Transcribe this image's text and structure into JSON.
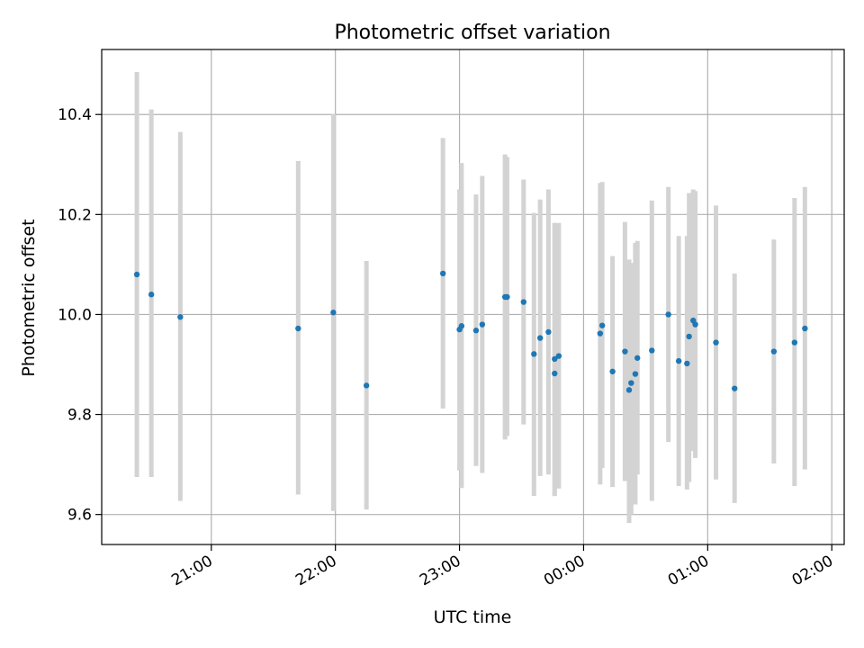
{
  "chart_data": {
    "type": "scatter",
    "title": "Photometric offset variation",
    "xlabel": "UTC time",
    "ylabel": "Photometric offset",
    "x_is_time": true,
    "xlim": [
      "20:07",
      "02:06"
    ],
    "ylim": [
      9.54,
      10.53
    ],
    "x_ticks": [
      "21:00",
      "22:00",
      "23:00",
      "00:00",
      "01:00",
      "02:00"
    ],
    "y_ticks": [
      "9.6",
      "9.8",
      "10.0",
      "10.2",
      "10.4"
    ],
    "grid": true,
    "legend": false,
    "colors": {
      "marker": "#1f77b4",
      "errorbar": "#d3d3d3",
      "grid": "#b0b0b0"
    },
    "points": [
      {
        "t": "20:24",
        "y": 10.08,
        "lo": 9.675,
        "hi": 10.485
      },
      {
        "t": "20:31",
        "y": 10.04,
        "lo": 9.675,
        "hi": 10.41
      },
      {
        "t": "20:45",
        "y": 9.995,
        "lo": 9.627,
        "hi": 10.365
      },
      {
        "t": "21:42",
        "y": 9.972,
        "lo": 9.64,
        "hi": 10.307
      },
      {
        "t": "21:59",
        "y": 10.004,
        "lo": 9.607,
        "hi": 10.401
      },
      {
        "t": "22:15",
        "y": 9.858,
        "lo": 9.61,
        "hi": 10.107
      },
      {
        "t": "22:52",
        "y": 10.082,
        "lo": 9.812,
        "hi": 10.353
      },
      {
        "t": "23:00",
        "y": 9.97,
        "lo": 9.688,
        "hi": 10.25
      },
      {
        "t": "23:01",
        "y": 9.977,
        "lo": 9.653,
        "hi": 10.303
      },
      {
        "t": "23:08",
        "y": 9.968,
        "lo": 9.697,
        "hi": 10.24
      },
      {
        "t": "23:11",
        "y": 9.98,
        "lo": 9.683,
        "hi": 10.277
      },
      {
        "t": "23:22",
        "y": 10.035,
        "lo": 9.75,
        "hi": 10.32
      },
      {
        "t": "23:23",
        "y": 10.035,
        "lo": 9.757,
        "hi": 10.315
      },
      {
        "t": "23:31",
        "y": 10.025,
        "lo": 9.78,
        "hi": 10.27
      },
      {
        "t": "23:36",
        "y": 9.921,
        "lo": 9.637,
        "hi": 10.203
      },
      {
        "t": "23:39",
        "y": 9.953,
        "lo": 9.677,
        "hi": 10.23
      },
      {
        "t": "23:43",
        "y": 9.965,
        "lo": 9.68,
        "hi": 10.25
      },
      {
        "t": "23:46",
        "y": 9.911,
        "lo": 9.637,
        "hi": 10.183
      },
      {
        "t": "23:46",
        "y": 9.882,
        "lo": 9.637,
        "hi": 10.183
      },
      {
        "t": "23:48",
        "y": 9.917,
        "lo": 9.652,
        "hi": 10.183
      },
      {
        "t": "00:08",
        "y": 9.962,
        "lo": 9.66,
        "hi": 10.263
      },
      {
        "t": "00:09",
        "y": 9.978,
        "lo": 9.693,
        "hi": 10.265
      },
      {
        "t": "00:14",
        "y": 9.886,
        "lo": 9.655,
        "hi": 10.117
      },
      {
        "t": "00:20",
        "y": 9.926,
        "lo": 9.667,
        "hi": 10.185
      },
      {
        "t": "00:22",
        "y": 9.849,
        "lo": 9.583,
        "hi": 10.11
      },
      {
        "t": "00:23",
        "y": 9.863,
        "lo": 9.6,
        "hi": 10.103
      },
      {
        "t": "00:25",
        "y": 9.881,
        "lo": 9.62,
        "hi": 10.143
      },
      {
        "t": "00:26",
        "y": 9.913,
        "lo": 9.68,
        "hi": 10.147
      },
      {
        "t": "00:33",
        "y": 9.928,
        "lo": 9.627,
        "hi": 10.228
      },
      {
        "t": "00:41",
        "y": 10.0,
        "lo": 9.745,
        "hi": 10.255
      },
      {
        "t": "00:46",
        "y": 9.907,
        "lo": 9.657,
        "hi": 10.157
      },
      {
        "t": "00:50",
        "y": 9.902,
        "lo": 9.65,
        "hi": 10.157
      },
      {
        "t": "00:51",
        "y": 9.956,
        "lo": 9.665,
        "hi": 10.243
      },
      {
        "t": "00:53",
        "y": 9.988,
        "lo": 9.727,
        "hi": 10.25
      },
      {
        "t": "00:54",
        "y": 9.98,
        "lo": 9.713,
        "hi": 10.247
      },
      {
        "t": "01:04",
        "y": 9.944,
        "lo": 9.67,
        "hi": 10.218
      },
      {
        "t": "01:13",
        "y": 9.852,
        "lo": 9.623,
        "hi": 10.082
      },
      {
        "t": "01:32",
        "y": 9.926,
        "lo": 9.702,
        "hi": 10.15
      },
      {
        "t": "01:42",
        "y": 9.944,
        "lo": 9.657,
        "hi": 10.233
      },
      {
        "t": "01:47",
        "y": 9.972,
        "lo": 9.69,
        "hi": 10.255
      }
    ]
  }
}
